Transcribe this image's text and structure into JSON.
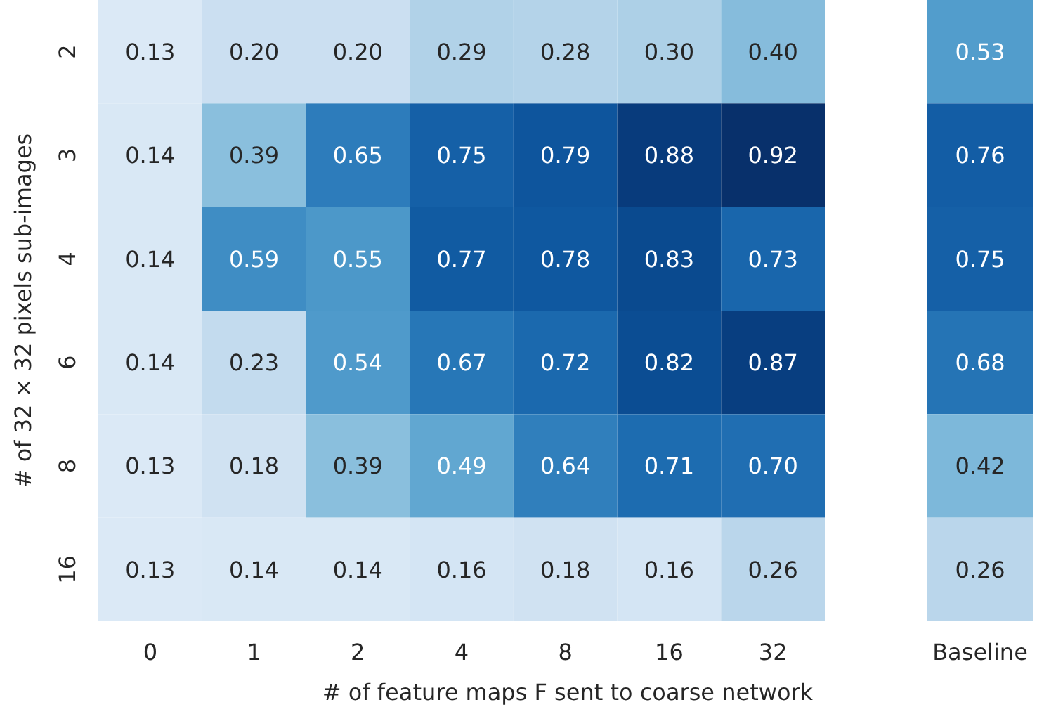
{
  "chart_data": [
    {
      "type": "heatmap",
      "xlabel": "# of feature maps F sent to coarse network",
      "ylabel": "# of 32 × 32 pixels sub-images",
      "categories": [
        "0",
        "1",
        "2",
        "4",
        "8",
        "16",
        "32"
      ],
      "y_categories": [
        "2",
        "3",
        "4",
        "6",
        "8",
        "16"
      ],
      "cells": [
        [
          0.13,
          0.2,
          0.2,
          0.29,
          0.28,
          0.3,
          0.4
        ],
        [
          0.14,
          0.39,
          0.65,
          0.75,
          0.79,
          0.88,
          0.92
        ],
        [
          0.14,
          0.59,
          0.55,
          0.77,
          0.78,
          0.83,
          0.73
        ],
        [
          0.14,
          0.23,
          0.54,
          0.67,
          0.72,
          0.82,
          0.87
        ],
        [
          0.13,
          0.18,
          0.39,
          0.49,
          0.64,
          0.71,
          0.7
        ],
        [
          0.13,
          0.14,
          0.14,
          0.16,
          0.18,
          0.16,
          0.26
        ]
      ],
      "cell_labels": [
        [
          "0.13",
          "0.20",
          "0.20",
          "0.29",
          "0.28",
          "0.30",
          "0.40"
        ],
        [
          "0.14",
          "0.39",
          "0.65",
          "0.75",
          "0.79",
          "0.88",
          "0.92"
        ],
        [
          "0.14",
          "0.59",
          "0.55",
          "0.77",
          "0.78",
          "0.83",
          "0.73"
        ],
        [
          "0.14",
          "0.23",
          "0.54",
          "0.67",
          "0.72",
          "0.82",
          "0.87"
        ],
        [
          "0.13",
          "0.18",
          "0.39",
          "0.49",
          "0.64",
          "0.71",
          "0.70"
        ],
        [
          "0.13",
          "0.14",
          "0.14",
          "0.16",
          "0.18",
          "0.16",
          "0.26"
        ]
      ],
      "data_labels": true
    },
    {
      "type": "heatmap",
      "categories": [
        "Baseline"
      ],
      "y_categories": [
        "2",
        "3",
        "4",
        "6",
        "8",
        "16"
      ],
      "cells": [
        [
          0.53
        ],
        [
          0.76
        ],
        [
          0.75
        ],
        [
          0.68
        ],
        [
          0.42
        ],
        [
          0.26
        ]
      ],
      "cell_labels": [
        [
          "0.53"
        ],
        [
          "0.76"
        ],
        [
          "0.75"
        ],
        [
          "0.68"
        ],
        [
          "0.42"
        ],
        [
          "0.26"
        ]
      ],
      "data_labels": true,
      "tick_labels": "x"
    }
  ]
}
